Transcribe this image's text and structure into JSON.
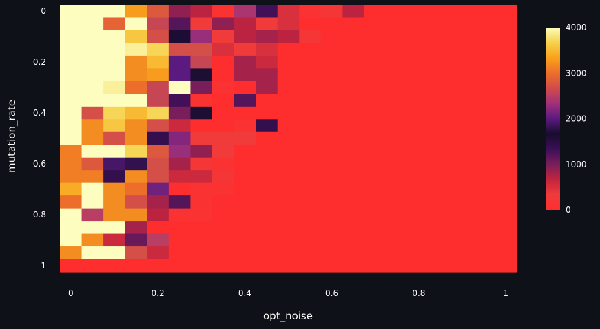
{
  "chart_data": {
    "type": "heatmap",
    "xlabel": "opt_noise",
    "ylabel": "mutation_rate",
    "x_range": [
      0,
      1
    ],
    "y_range": [
      0,
      1
    ],
    "x_ticks": [
      "0",
      "0.2",
      "0.4",
      "0.6",
      "0.8",
      "1"
    ],
    "y_ticks": [
      "0",
      "0.2",
      "0.4",
      "0.6",
      "0.8",
      "1"
    ],
    "colorbar": {
      "ticks": [
        "4000",
        "3000",
        "2000",
        "1000",
        "0"
      ],
      "range": [
        0,
        4000
      ],
      "scale": [
        "#ff2e2e",
        "#ef3b3b",
        "#c2243e",
        "#7a1e5b",
        "#3b0f57",
        "#160d2c",
        "#5a1a80",
        "#a0307a",
        "#d14b4b",
        "#ed6e2a",
        "#f9a11b",
        "#f6d14a",
        "#fcfdbf"
      ]
    },
    "columns": 21,
    "rows": 21,
    "z": [
      [
        4000,
        4000,
        4000,
        3300,
        2800,
        900,
        700,
        100,
        2400,
        1300,
        500,
        100,
        200,
        700,
        0,
        0,
        0,
        0,
        0,
        0,
        0
      ],
      [
        4000,
        4000,
        2900,
        4000,
        2600,
        1200,
        300,
        900,
        700,
        300,
        500,
        0,
        0,
        0,
        0,
        0,
        0,
        0,
        0,
        0,
        0
      ],
      [
        4000,
        4000,
        4000,
        3600,
        2700,
        1600,
        2300,
        300,
        700,
        800,
        700,
        200,
        0,
        0,
        0,
        0,
        0,
        0,
        0,
        0,
        0
      ],
      [
        4000,
        4000,
        4000,
        3900,
        3700,
        2700,
        2700,
        500,
        300,
        500,
        0,
        0,
        0,
        0,
        0,
        0,
        0,
        0,
        0,
        0,
        0
      ],
      [
        4000,
        4000,
        4000,
        3200,
        3500,
        2000,
        2600,
        0,
        800,
        600,
        0,
        0,
        0,
        0,
        0,
        0,
        0,
        0,
        0,
        0,
        0
      ],
      [
        4000,
        4000,
        4000,
        3200,
        3300,
        2000,
        1700,
        0,
        800,
        800,
        0,
        0,
        0,
        0,
        0,
        0,
        0,
        0,
        0,
        0,
        0
      ],
      [
        4000,
        4000,
        3900,
        3000,
        2600,
        4000,
        1000,
        100,
        0,
        800,
        0,
        0,
        0,
        0,
        0,
        0,
        0,
        0,
        0,
        0,
        0
      ],
      [
        4000,
        4000,
        4000,
        4000,
        2600,
        1300,
        100,
        0,
        1200,
        0,
        0,
        0,
        0,
        0,
        0,
        0,
        0,
        0,
        0,
        0,
        0
      ],
      [
        4000,
        2700,
        3700,
        3500,
        3700,
        1000,
        1700,
        0,
        0,
        0,
        0,
        0,
        0,
        0,
        0,
        0,
        0,
        0,
        0,
        0,
        0
      ],
      [
        4000,
        3200,
        3600,
        3200,
        2700,
        600,
        0,
        0,
        100,
        1400,
        0,
        0,
        0,
        0,
        0,
        0,
        0,
        0,
        0,
        0,
        0
      ],
      [
        4000,
        3200,
        2700,
        3200,
        1400,
        2200,
        300,
        300,
        300,
        0,
        0,
        0,
        0,
        0,
        0,
        0,
        0,
        0,
        0,
        0,
        0
      ],
      [
        3100,
        4000,
        4000,
        3700,
        2800,
        2300,
        900,
        300,
        0,
        0,
        0,
        0,
        0,
        0,
        0,
        0,
        0,
        0,
        0,
        0,
        0
      ],
      [
        3100,
        2800,
        1900,
        1800,
        2700,
        800,
        200,
        100,
        0,
        0,
        0,
        0,
        0,
        0,
        0,
        0,
        0,
        0,
        0,
        0,
        0
      ],
      [
        3100,
        3100,
        1400,
        3200,
        2700,
        600,
        600,
        200,
        0,
        0,
        0,
        0,
        0,
        0,
        0,
        0,
        0,
        0,
        0,
        0,
        0
      ],
      [
        3400,
        4000,
        3200,
        3000,
        2100,
        0,
        100,
        100,
        0,
        0,
        0,
        0,
        0,
        0,
        0,
        0,
        0,
        0,
        0,
        0,
        0
      ],
      [
        3000,
        4000,
        3200,
        2700,
        800,
        1200,
        100,
        0,
        0,
        0,
        0,
        0,
        0,
        0,
        0,
        0,
        0,
        0,
        0,
        0,
        0
      ],
      [
        4000,
        2500,
        3200,
        3200,
        700,
        100,
        100,
        0,
        0,
        0,
        0,
        0,
        0,
        0,
        0,
        0,
        0,
        0,
        0,
        0,
        0
      ],
      [
        4000,
        4000,
        4000,
        800,
        0,
        0,
        0,
        0,
        0,
        0,
        0,
        0,
        0,
        0,
        0,
        0,
        0,
        0,
        0,
        0,
        0
      ],
      [
        4000,
        3200,
        600,
        1100,
        2500,
        0,
        0,
        0,
        0,
        0,
        0,
        0,
        0,
        0,
        0,
        0,
        0,
        0,
        0,
        0,
        0
      ],
      [
        3200,
        4000,
        4000,
        2700,
        600,
        0,
        0,
        0,
        0,
        0,
        0,
        0,
        0,
        0,
        0,
        0,
        0,
        0,
        0,
        0,
        0
      ],
      [
        0,
        0,
        0,
        0,
        0,
        0,
        0,
        0,
        0,
        0,
        0,
        0,
        0,
        0,
        0,
        0,
        0,
        0,
        0,
        0,
        0
      ]
    ]
  }
}
